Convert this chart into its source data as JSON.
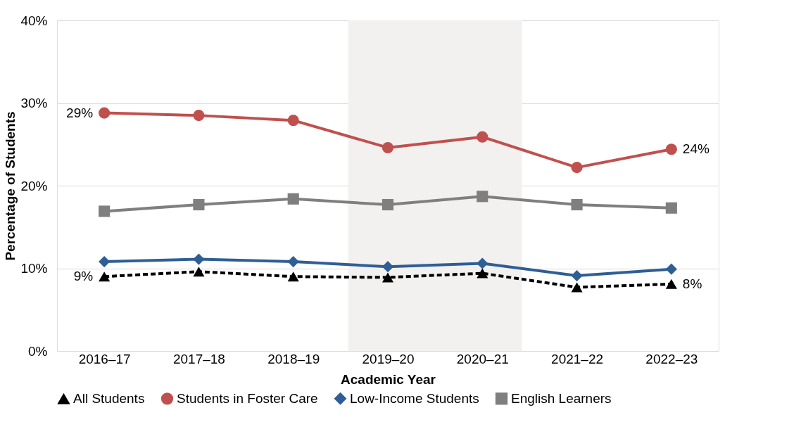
{
  "chart_data": {
    "type": "line",
    "xlabel": "Academic Year",
    "ylabel": "Percentage of Students",
    "categories": [
      "2016–17",
      "2017–18",
      "2018–19",
      "2019–20",
      "2020–21",
      "2021–22",
      "2022–23"
    ],
    "ylim": [
      0,
      40
    ],
    "yticks": [
      {
        "value": 0,
        "label": "0%"
      },
      {
        "value": 10,
        "label": "10%"
      },
      {
        "value": 20,
        "label": "20%"
      },
      {
        "value": 30,
        "label": "30%"
      },
      {
        "value": 40,
        "label": "40%"
      }
    ],
    "grid": "y",
    "legend": "bottom",
    "bands": [
      {
        "axis": "x",
        "from": "2019–20",
        "to": "2020–21",
        "color": "#f2f1f0"
      }
    ],
    "series": [
      {
        "name": "All Students",
        "color": "#000000",
        "marker": "triangle",
        "line_style": "dashed",
        "values": [
          9.0,
          9.6,
          9.0,
          8.9,
          9.4,
          7.7,
          8.1
        ],
        "value_labels": [
          "9%",
          null,
          null,
          null,
          null,
          null,
          "8%"
        ]
      },
      {
        "name": "Students in Foster Care",
        "color": "#c0504d",
        "marker": "circle",
        "line_style": "solid",
        "values": [
          28.8,
          28.5,
          27.9,
          24.6,
          25.9,
          22.2,
          24.4
        ],
        "value_labels": [
          "29%",
          null,
          null,
          null,
          null,
          null,
          "24%"
        ]
      },
      {
        "name": "Low-Income Students",
        "color": "#2f5e94",
        "marker": "diamond",
        "line_style": "solid",
        "values": [
          10.8,
          11.1,
          10.8,
          10.2,
          10.6,
          9.1,
          9.9
        ]
      },
      {
        "name": "English Learners",
        "color": "#7f7f7f",
        "marker": "square",
        "line_style": "solid",
        "values": [
          16.9,
          17.7,
          18.4,
          17.7,
          18.7,
          17.7,
          17.3
        ]
      }
    ]
  }
}
